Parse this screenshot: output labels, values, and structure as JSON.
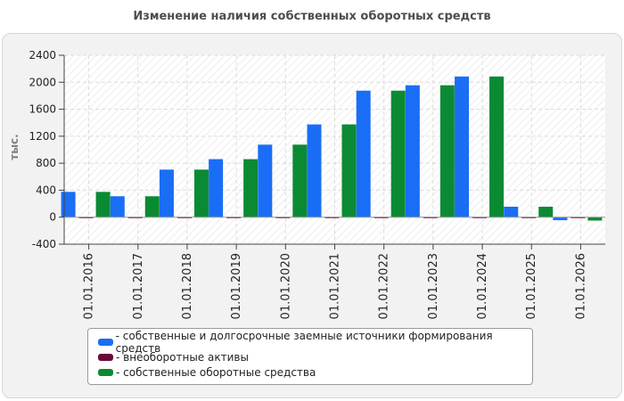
{
  "chart_data": {
    "type": "bar",
    "title": "Изменение наличия собственных оборотных средств",
    "xlabel": "",
    "ylabel": "тыс.",
    "ylim": [
      -400,
      2400
    ],
    "yticks": [
      -400,
      0,
      400,
      800,
      1200,
      1600,
      2000,
      2400
    ],
    "categories": [
      "01.01.2016",
      "01.01.2017",
      "01.01.2018",
      "01.01.2019",
      "01.01.2020",
      "01.01.2021",
      "01.01.2022",
      "01.01.2023",
      "01.01.2024",
      "01.01.2025",
      "01.01.2026"
    ],
    "series": [
      {
        "name": "- собственные и долгосрочные заемные источники формирования средств",
        "color": "#1a6ef5",
        "values": [
          375,
          310,
          705,
          860,
          1075,
          1375,
          1875,
          1955,
          2085,
          155,
          -45
        ]
      },
      {
        "name": "- внеоборотные активы",
        "color": "#6a0a3a",
        "values": [
          5,
          5,
          5,
          5,
          5,
          5,
          5,
          5,
          5,
          5,
          5
        ]
      },
      {
        "name": "- собственные оборотные средства",
        "color": "#0b8a34",
        "values": [
          375,
          310,
          705,
          860,
          1075,
          1375,
          1875,
          1955,
          2085,
          155,
          -50
        ]
      }
    ],
    "grid": true,
    "legend_position": "bottom"
  }
}
